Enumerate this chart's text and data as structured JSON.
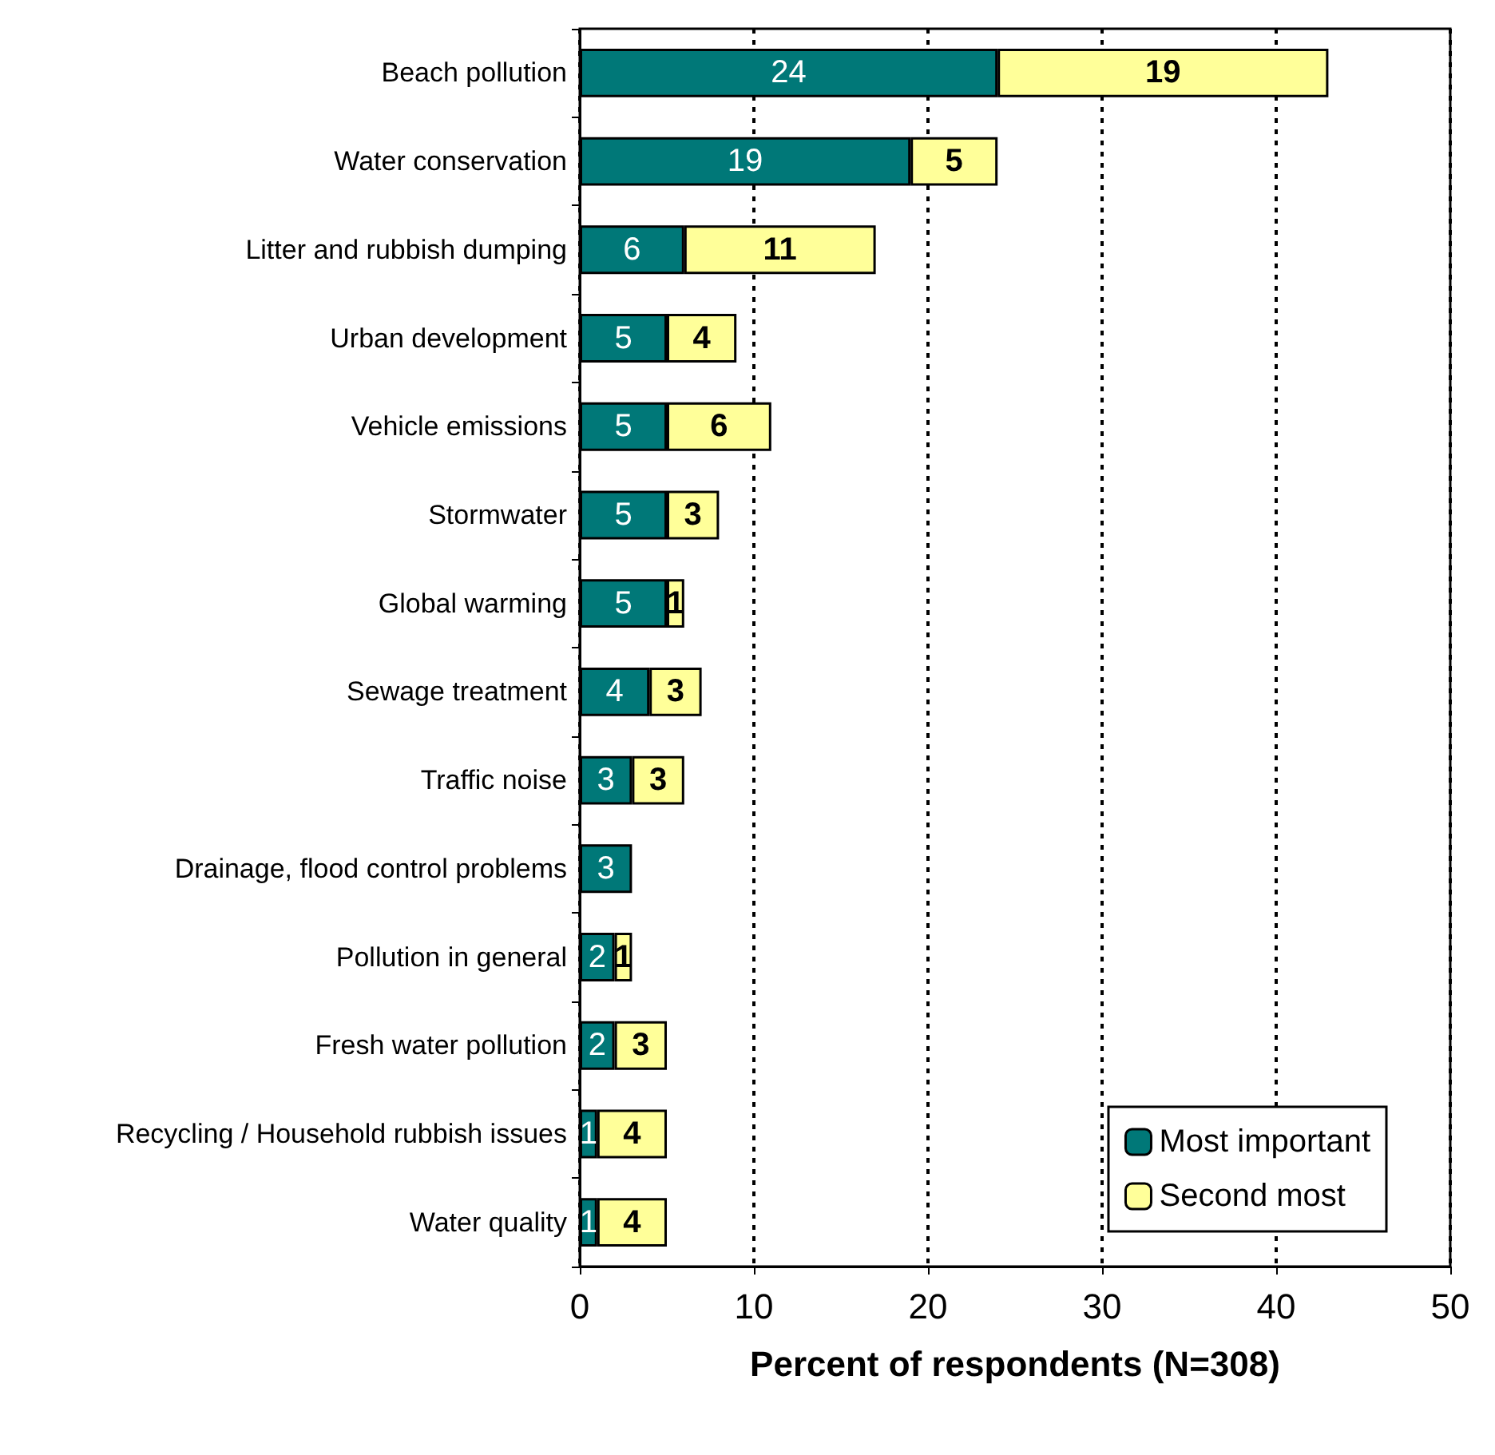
{
  "chart_data": {
    "type": "bar",
    "orientation": "horizontal",
    "stacked": true,
    "data_labels": true,
    "grid": "x",
    "line_style": "dotted",
    "legend": "bottom right",
    "xlabel": "Percent of respondents (N=308)",
    "xlim": [
      0,
      50
    ],
    "xticks": [
      0,
      10,
      20,
      30,
      40,
      50
    ],
    "categories": [
      "Beach pollution",
      "Water conservation",
      "Litter and rubbish dumping",
      "Urban development",
      "Vehicle emissions",
      "Stormwater",
      "Global warming",
      "Sewage treatment",
      "Traffic noise",
      "Drainage, flood control problems",
      "Pollution in general",
      "Fresh water pollution",
      "Recycling / Household rubbish issues",
      "Water quality"
    ],
    "series": [
      {
        "name": "Most important",
        "color": "#007878",
        "values": [
          24,
          19,
          6,
          5,
          5,
          5,
          5,
          4,
          3,
          3,
          2,
          2,
          1,
          1
        ]
      },
      {
        "name": "Second most",
        "color": "#ffff99",
        "values": [
          19,
          5,
          11,
          4,
          6,
          3,
          1,
          3,
          3,
          null,
          1,
          3,
          4,
          4
        ]
      }
    ]
  }
}
